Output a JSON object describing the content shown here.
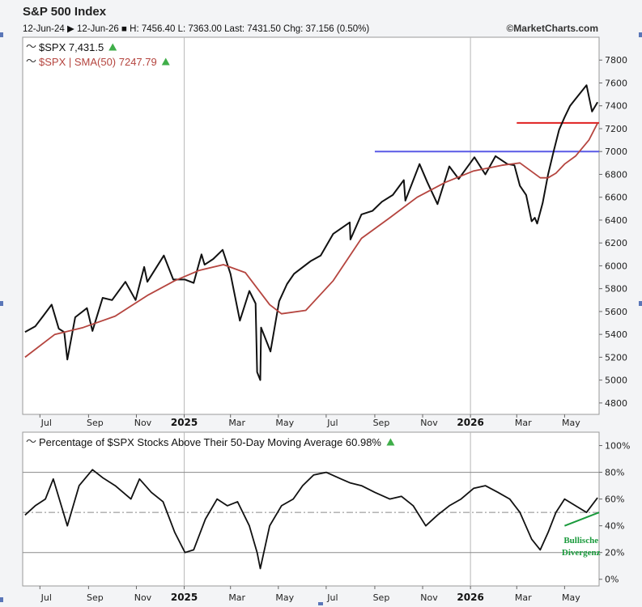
{
  "header": {
    "title": "S&P 500 Index",
    "stats_line": "12-Jun-24 ▶ 12-Jun-26 ■ H: 7456.40 L: 7363.00 Last: 7431.50 Chg: 37.156 (0.50%)",
    "credit": "©MarketCharts.com"
  },
  "colors": {
    "price": "#111111",
    "sma": "#b5453f",
    "red_line": "#e02020",
    "blue_line": "#5a5ae6",
    "up_arrow": "#3fae49",
    "annotation": "#1a9a3c",
    "breadth": "#111111"
  },
  "chart_data": [
    {
      "type": "line",
      "title": "S&P 500 Index",
      "x_labels": [
        "Jul",
        "Sep",
        "Nov",
        "2025",
        "Mar",
        "May",
        "Jul",
        "Sep",
        "Nov",
        "2026",
        "Mar",
        "May"
      ],
      "ylim": [
        4700,
        8000
      ],
      "y_ticks": [
        4800,
        5000,
        5200,
        5400,
        5600,
        5800,
        6000,
        6200,
        6400,
        6600,
        6800,
        7000,
        7200,
        7400,
        7600,
        7800
      ],
      "grid": "vertical lines at year starts",
      "legend": [
        {
          "label": "$SPX 7,431.5",
          "arrow": "up"
        },
        {
          "label": "$SPX | SMA(50) 7247.79",
          "arrow": "up"
        }
      ],
      "series": [
        {
          "name": "$SPX",
          "x": [
            "2024-06-12",
            "2024-06-25",
            "2024-07-05",
            "2024-07-16",
            "2024-07-25",
            "2024-08-01",
            "2024-08-05",
            "2024-08-15",
            "2024-08-30",
            "2024-09-06",
            "2024-09-19",
            "2024-10-01",
            "2024-10-18",
            "2024-10-31",
            "2024-11-11",
            "2024-11-15",
            "2024-12-06",
            "2024-12-18",
            "2025-01-02",
            "2025-01-13",
            "2025-01-23",
            "2025-01-27",
            "2025-02-07",
            "2025-02-19",
            "2025-03-01",
            "2025-03-13",
            "2025-03-25",
            "2025-04-02",
            "2025-04-04",
            "2025-04-08",
            "2025-04-09",
            "2025-04-21",
            "2025-05-02",
            "2025-05-12",
            "2025-05-21",
            "2025-06-11",
            "2025-06-24",
            "2025-07-10",
            "2025-07-31",
            "2025-08-01",
            "2025-08-15",
            "2025-08-29",
            "2025-09-10",
            "2025-09-24",
            "2025-10-08",
            "2025-10-10",
            "2025-10-28",
            "2025-11-07",
            "2025-11-20",
            "2025-12-05",
            "2025-12-17",
            "2026-01-06",
            "2026-01-20",
            "2026-02-02",
            "2026-02-17",
            "2026-02-26",
            "2026-03-05",
            "2026-03-13",
            "2026-03-20",
            "2026-03-24",
            "2026-03-27",
            "2026-04-03",
            "2026-04-10",
            "2026-04-17",
            "2026-04-24",
            "2026-05-01",
            "2026-05-08",
            "2026-05-15",
            "2026-05-22",
            "2026-05-29",
            "2026-06-05",
            "2026-06-12"
          ],
          "values": [
            5420,
            5470,
            5560,
            5660,
            5450,
            5420,
            5180,
            5550,
            5630,
            5430,
            5720,
            5700,
            5860,
            5700,
            5990,
            5860,
            6090,
            5880,
            5880,
            5850,
            6100,
            6010,
            6060,
            6140,
            5930,
            5520,
            5780,
            5670,
            5070,
            5000,
            5460,
            5250,
            5690,
            5840,
            5930,
            6040,
            6090,
            6280,
            6380,
            6230,
            6450,
            6480,
            6560,
            6620,
            6750,
            6570,
            6890,
            6730,
            6540,
            6870,
            6760,
            6950,
            6800,
            6960,
            6890,
            6880,
            6700,
            6620,
            6390,
            6420,
            6370,
            6550,
            6800,
            7000,
            7190,
            7300,
            7400,
            7460,
            7520,
            7580,
            7350,
            7431.5
          ]
        },
        {
          "name": "$SPX | SMA(50)",
          "x": [
            "2024-06-12",
            "2024-07-20",
            "2024-08-25",
            "2024-10-05",
            "2024-11-15",
            "2024-12-20",
            "2025-01-20",
            "2025-02-20",
            "2025-03-20",
            "2025-04-20",
            "2025-05-05",
            "2025-06-05",
            "2025-07-10",
            "2025-08-15",
            "2025-09-20",
            "2025-10-25",
            "2025-11-30",
            "2026-01-05",
            "2026-02-10",
            "2026-03-05",
            "2026-03-31",
            "2026-04-10",
            "2026-04-20",
            "2026-05-01",
            "2026-05-15",
            "2026-06-01",
            "2026-06-12"
          ],
          "values": [
            5200,
            5400,
            5460,
            5560,
            5740,
            5870,
            5960,
            6010,
            5940,
            5660,
            5580,
            5610,
            5870,
            6240,
            6420,
            6600,
            6730,
            6830,
            6880,
            6900,
            6770,
            6770,
            6810,
            6890,
            6960,
            7100,
            7247.79
          ]
        }
      ],
      "reference_lines": [
        {
          "y": 7250,
          "from": "2026-03-01",
          "to": "2026-06-14",
          "color": "#e02020"
        },
        {
          "y": 7000,
          "from": "2025-09-01",
          "to": "2026-06-14",
          "color": "#5a5ae6"
        }
      ]
    },
    {
      "type": "line",
      "title": "Percentage of $SPX Stocks Above Their 50-Day Moving Average 60.98%",
      "x_labels": [
        "Jul",
        "Sep",
        "Nov",
        "2025",
        "Mar",
        "May",
        "Jul",
        "Sep",
        "Nov",
        "2026",
        "Mar",
        "May"
      ],
      "ylim": [
        -5,
        110
      ],
      "y_ticks": [
        0,
        20,
        40,
        60,
        80,
        100
      ],
      "y_tick_labels": [
        "0%",
        "20%",
        "40%",
        "60%",
        "80%",
        "100%"
      ],
      "horizontal_lines": [
        20,
        50,
        80
      ],
      "series": [
        {
          "name": "Percentage of $SPX Stocks Above Their 50-Day Moving Average",
          "x": [
            "2024-06-12",
            "2024-06-25",
            "2024-07-08",
            "2024-07-18",
            "2024-08-05",
            "2024-08-20",
            "2024-09-06",
            "2024-09-19",
            "2024-10-05",
            "2024-10-25",
            "2024-11-05",
            "2024-11-20",
            "2024-12-05",
            "2024-12-20",
            "2025-01-02",
            "2025-01-13",
            "2025-01-28",
            "2025-02-12",
            "2025-02-25",
            "2025-03-10",
            "2025-03-25",
            "2025-04-04",
            "2025-04-08",
            "2025-04-20",
            "2025-05-05",
            "2025-05-20",
            "2025-06-01",
            "2025-06-15",
            "2025-07-01",
            "2025-07-20",
            "2025-08-01",
            "2025-08-15",
            "2025-09-01",
            "2025-09-20",
            "2025-10-05",
            "2025-10-20",
            "2025-11-05",
            "2025-11-20",
            "2025-12-05",
            "2025-12-20",
            "2026-01-05",
            "2026-01-20",
            "2026-02-05",
            "2026-02-20",
            "2026-03-05",
            "2026-03-20",
            "2026-03-31",
            "2026-04-10",
            "2026-04-20",
            "2026-05-01",
            "2026-05-15",
            "2026-05-29",
            "2026-06-12"
          ],
          "values": [
            48,
            55,
            60,
            75,
            40,
            70,
            82,
            76,
            70,
            60,
            75,
            65,
            58,
            35,
            20,
            22,
            45,
            60,
            55,
            58,
            40,
            20,
            8,
            40,
            55,
            60,
            70,
            78,
            80,
            75,
            72,
            70,
            65,
            60,
            62,
            55,
            40,
            48,
            55,
            60,
            68,
            70,
            65,
            60,
            50,
            30,
            22,
            35,
            50,
            60,
            55,
            50,
            60.98
          ]
        }
      ],
      "annotations": [
        {
          "text": "Bullische Divergenz",
          "target_y": 50,
          "color": "#1a9a3c"
        }
      ]
    }
  ]
}
